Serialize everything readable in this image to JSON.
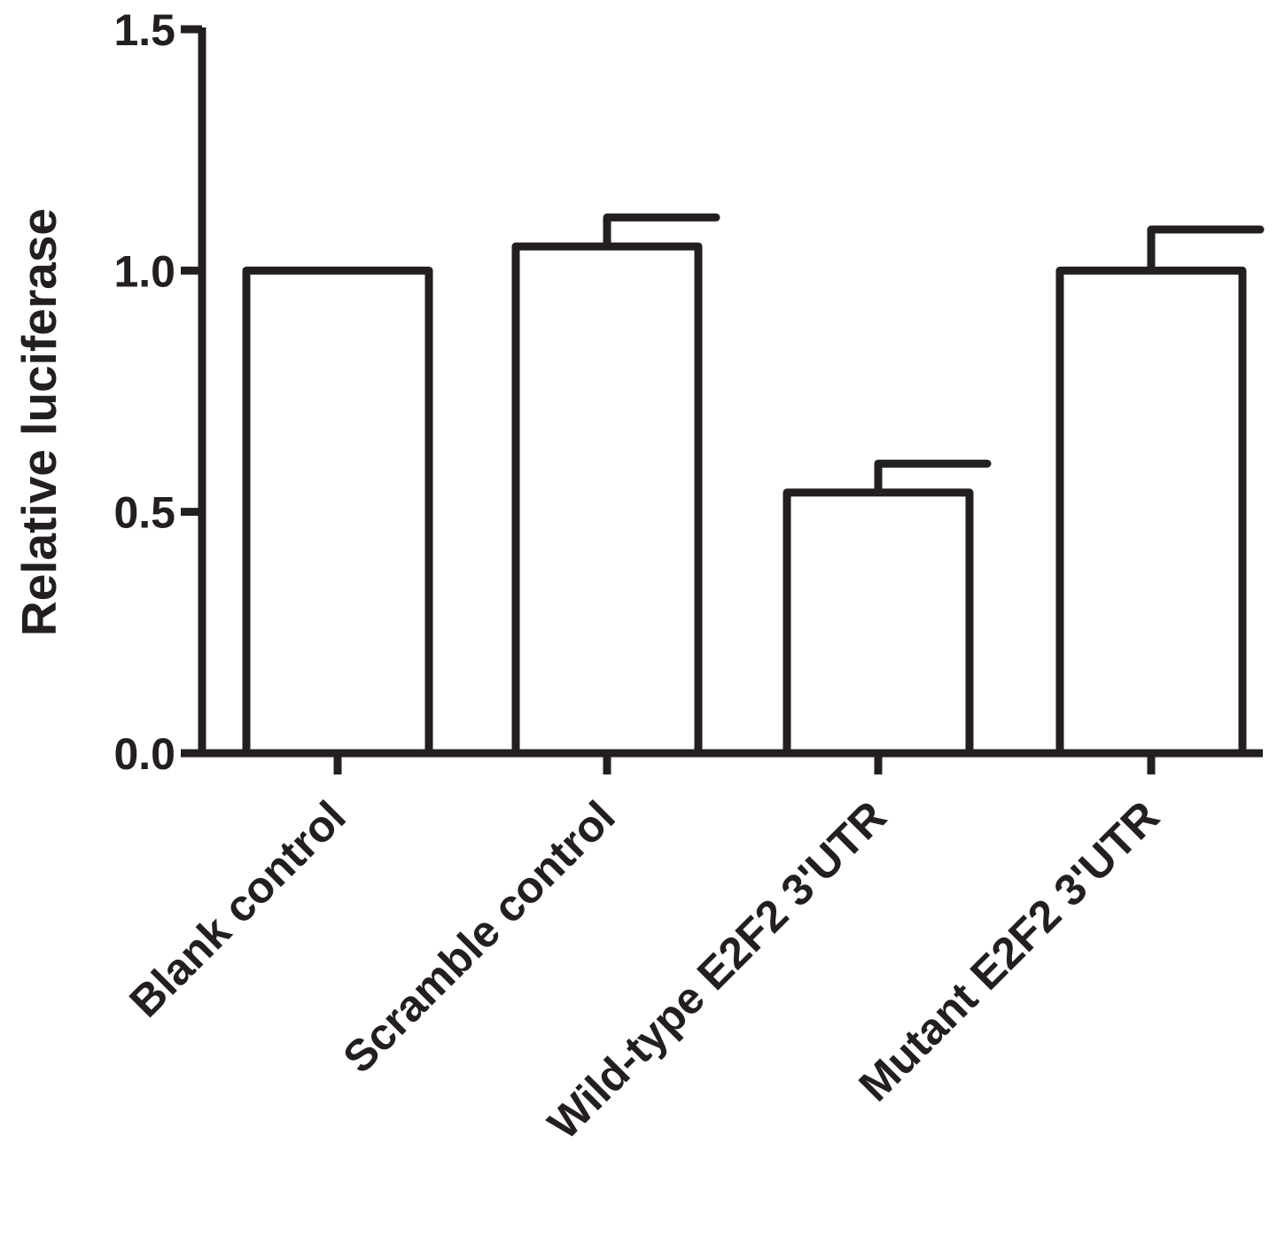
{
  "chart_data": {
    "type": "bar",
    "title": "",
    "xlabel": "",
    "ylabel": "Relative luciferase",
    "categories": [
      "Blank control",
      "Scramble control",
      "Wild-type E2F2 3'UTR",
      "Mutant E2F2 3'UTR"
    ],
    "series": [
      {
        "values": [
          1.0,
          1.05,
          0.54,
          1.0
        ],
        "error": [
          0.0,
          0.06,
          0.06,
          0.085
        ]
      }
    ],
    "ylim": [
      0,
      1.5
    ],
    "yticks": [
      "0.0",
      "0.5",
      "1.0",
      "1.5"
    ],
    "bar_fill": "#ffffff",
    "line_color": "#231f20",
    "grid": false,
    "legend": "none"
  }
}
